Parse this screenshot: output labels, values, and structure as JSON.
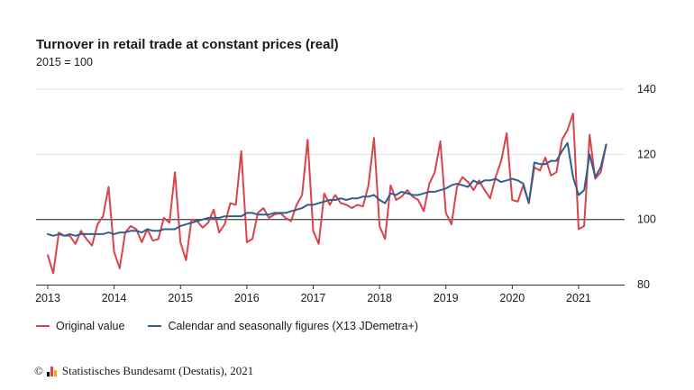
{
  "header": {
    "title": "Turnover in retail trade at constant prices (real)",
    "subtitle": "2015 = 100"
  },
  "legend": {
    "items": [
      {
        "label": "Original value",
        "color": "#d9434b"
      },
      {
        "label": "Calendar and seasonally figures (X13 JDemetra+)",
        "color": "#2f5f8f"
      }
    ]
  },
  "source": {
    "copyright_symbol": "©",
    "text": "Statistisches Bundesamt (Destatis), 2021"
  },
  "chart_data": {
    "type": "line",
    "title": "Turnover in retail trade at constant prices (real)",
    "subtitle": "2015 = 100",
    "xlabel": "",
    "ylabel": "",
    "ylim": [
      80,
      140
    ],
    "yticks": [
      80,
      100,
      120,
      140
    ],
    "y_axis_side": "right",
    "reference_line": 100,
    "grid": true,
    "legend_placement": "bottom-left",
    "x_start": "2013-01",
    "x_end": "2021-06",
    "x_tick_labels": [
      "2013",
      "2014",
      "2015",
      "2016",
      "2017",
      "2018",
      "2019",
      "2020",
      "2021"
    ],
    "series": [
      {
        "name": "Original value",
        "color": "#d9434b",
        "values": [
          89,
          83.5,
          96,
          95,
          95,
          92.5,
          96.5,
          94,
          92,
          98.5,
          101,
          110,
          90,
          85,
          96,
          98,
          97,
          93,
          97,
          93.5,
          94,
          100.5,
          99,
          114.5,
          93,
          87.5,
          100,
          99.5,
          97.5,
          99,
          103,
          96,
          98.5,
          105,
          104.5,
          121,
          93,
          94,
          102,
          103.5,
          100.5,
          101.5,
          102,
          100.5,
          99.5,
          104.5,
          107.5,
          124.5,
          96.5,
          92.5,
          108,
          104.5,
          107.5,
          105,
          104.5,
          103.5,
          104.5,
          104,
          110.5,
          125,
          98,
          94,
          110.5,
          106,
          107,
          109,
          107,
          106,
          102.5,
          111,
          114.5,
          124,
          102,
          98.5,
          110,
          113,
          111.5,
          109,
          112,
          109,
          106.5,
          113,
          118,
          126.5,
          106,
          105.5,
          110.5,
          105,
          116,
          115,
          119,
          113.5,
          114.5,
          124.5,
          127.5,
          132.5,
          97,
          98,
          126,
          112.5,
          114.5,
          123
        ]
      },
      {
        "name": "Calendar and seasonally figures (X13 JDemetra+)",
        "color": "#2f5f8f",
        "values": [
          95.5,
          95,
          95.5,
          95,
          95.5,
          95,
          95.5,
          95.5,
          95.5,
          95.5,
          95.5,
          96,
          95.5,
          96,
          96,
          96.5,
          96.5,
          96,
          97,
          96.5,
          96.5,
          97,
          97,
          97,
          98,
          98.5,
          99,
          99.5,
          100,
          100.5,
          100.5,
          100.5,
          101,
          101,
          101,
          101,
          102,
          102,
          101.5,
          101.5,
          101.5,
          102,
          102,
          102,
          102.5,
          103,
          103.5,
          104.5,
          104.5,
          105,
          105.5,
          106,
          106,
          106.5,
          106,
          106.5,
          106.5,
          107,
          107,
          107.5,
          106,
          105,
          108,
          107.5,
          108.5,
          108,
          107.5,
          107.5,
          108,
          108.5,
          108.5,
          109,
          109.5,
          110.5,
          111,
          110.5,
          110,
          112,
          111,
          112,
          112,
          112.5,
          111.5,
          112,
          112.5,
          112,
          111,
          105,
          117.5,
          117,
          117,
          118,
          118,
          121,
          123.5,
          113,
          107.5,
          109,
          120,
          113,
          116,
          123
        ]
      }
    ]
  }
}
